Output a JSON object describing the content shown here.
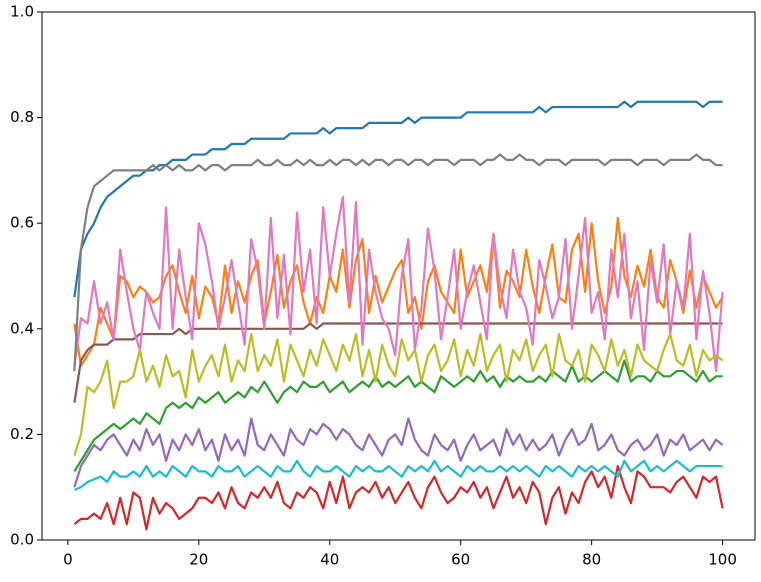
{
  "chart_data": {
    "type": "line",
    "x": [
      1,
      2,
      3,
      4,
      5,
      6,
      7,
      8,
      9,
      10,
      11,
      12,
      13,
      14,
      15,
      16,
      17,
      18,
      19,
      20,
      21,
      22,
      23,
      24,
      25,
      26,
      27,
      28,
      29,
      30,
      31,
      32,
      33,
      34,
      35,
      36,
      37,
      38,
      39,
      40,
      41,
      42,
      43,
      44,
      45,
      46,
      47,
      48,
      49,
      50,
      51,
      52,
      53,
      54,
      55,
      56,
      57,
      58,
      59,
      60,
      61,
      62,
      63,
      64,
      65,
      66,
      67,
      68,
      69,
      70,
      71,
      72,
      73,
      74,
      75,
      76,
      77,
      78,
      79,
      80,
      81,
      82,
      83,
      84,
      85,
      86,
      87,
      88,
      89,
      90,
      91,
      92,
      93,
      94,
      95,
      96,
      97,
      98,
      99,
      100
    ],
    "series": [
      {
        "color": "#1f77b4",
        "values": [
          0.46,
          0.55,
          0.58,
          0.6,
          0.63,
          0.65,
          0.66,
          0.67,
          0.68,
          0.69,
          0.69,
          0.7,
          0.7,
          0.71,
          0.71,
          0.72,
          0.72,
          0.72,
          0.73,
          0.73,
          0.73,
          0.74,
          0.74,
          0.74,
          0.75,
          0.75,
          0.75,
          0.76,
          0.76,
          0.76,
          0.76,
          0.76,
          0.76,
          0.77,
          0.77,
          0.77,
          0.77,
          0.77,
          0.78,
          0.77,
          0.78,
          0.78,
          0.78,
          0.78,
          0.78,
          0.79,
          0.79,
          0.79,
          0.79,
          0.79,
          0.79,
          0.8,
          0.79,
          0.8,
          0.8,
          0.8,
          0.8,
          0.8,
          0.8,
          0.8,
          0.81,
          0.81,
          0.81,
          0.81,
          0.81,
          0.81,
          0.81,
          0.81,
          0.81,
          0.81,
          0.81,
          0.82,
          0.81,
          0.82,
          0.82,
          0.82,
          0.82,
          0.82,
          0.82,
          0.82,
          0.82,
          0.82,
          0.82,
          0.82,
          0.83,
          0.82,
          0.83,
          0.83,
          0.83,
          0.83,
          0.83,
          0.83,
          0.83,
          0.83,
          0.83,
          0.83,
          0.82,
          0.83,
          0.83,
          0.83
        ]
      },
      {
        "color": "#ff7f0e",
        "values": [
          0.41,
          0.33,
          0.35,
          0.37,
          0.44,
          0.41,
          0.38,
          0.5,
          0.49,
          0.46,
          0.48,
          0.47,
          0.45,
          0.46,
          0.5,
          0.52,
          0.47,
          0.43,
          0.5,
          0.42,
          0.48,
          0.46,
          0.41,
          0.52,
          0.43,
          0.49,
          0.45,
          0.5,
          0.53,
          0.41,
          0.47,
          0.54,
          0.44,
          0.49,
          0.52,
          0.45,
          0.41,
          0.46,
          0.43,
          0.5,
          0.47,
          0.55,
          0.44,
          0.53,
          0.57,
          0.43,
          0.5,
          0.45,
          0.48,
          0.51,
          0.53,
          0.43,
          0.46,
          0.4,
          0.49,
          0.52,
          0.47,
          0.45,
          0.43,
          0.55,
          0.46,
          0.49,
          0.52,
          0.47,
          0.58,
          0.44,
          0.51,
          0.49,
          0.46,
          0.55,
          0.48,
          0.43,
          0.5,
          0.56,
          0.46,
          0.45,
          0.55,
          0.58,
          0.47,
          0.6,
          0.49,
          0.43,
          0.48,
          0.61,
          0.5,
          0.46,
          0.52,
          0.48,
          0.55,
          0.46,
          0.44,
          0.53,
          0.49,
          0.43,
          0.51,
          0.44,
          0.5,
          0.47,
          0.44,
          0.46
        ]
      },
      {
        "color": "#2ca02c",
        "values": [
          0.13,
          0.15,
          0.17,
          0.19,
          0.2,
          0.21,
          0.22,
          0.21,
          0.22,
          0.23,
          0.22,
          0.24,
          0.23,
          0.22,
          0.25,
          0.26,
          0.25,
          0.26,
          0.25,
          0.27,
          0.26,
          0.27,
          0.28,
          0.26,
          0.27,
          0.28,
          0.27,
          0.29,
          0.28,
          0.3,
          0.28,
          0.26,
          0.28,
          0.29,
          0.28,
          0.3,
          0.29,
          0.29,
          0.3,
          0.28,
          0.29,
          0.3,
          0.28,
          0.29,
          0.3,
          0.29,
          0.31,
          0.29,
          0.3,
          0.29,
          0.3,
          0.31,
          0.29,
          0.3,
          0.29,
          0.28,
          0.31,
          0.3,
          0.29,
          0.3,
          0.31,
          0.3,
          0.32,
          0.3,
          0.31,
          0.29,
          0.31,
          0.3,
          0.31,
          0.3,
          0.3,
          0.31,
          0.3,
          0.32,
          0.31,
          0.3,
          0.33,
          0.3,
          0.31,
          0.3,
          0.31,
          0.32,
          0.31,
          0.3,
          0.34,
          0.3,
          0.31,
          0.31,
          0.3,
          0.32,
          0.31,
          0.31,
          0.32,
          0.32,
          0.31,
          0.3,
          0.32,
          0.3,
          0.31,
          0.31
        ]
      },
      {
        "color": "#d62728",
        "values": [
          0.03,
          0.04,
          0.04,
          0.05,
          0.04,
          0.07,
          0.03,
          0.08,
          0.03,
          0.09,
          0.08,
          0.02,
          0.08,
          0.05,
          0.07,
          0.06,
          0.04,
          0.05,
          0.06,
          0.08,
          0.08,
          0.07,
          0.09,
          0.06,
          0.1,
          0.07,
          0.06,
          0.09,
          0.08,
          0.1,
          0.08,
          0.11,
          0.07,
          0.06,
          0.09,
          0.08,
          0.1,
          0.09,
          0.06,
          0.11,
          0.07,
          0.12,
          0.06,
          0.09,
          0.1,
          0.09,
          0.11,
          0.08,
          0.1,
          0.07,
          0.09,
          0.11,
          0.08,
          0.06,
          0.1,
          0.12,
          0.09,
          0.07,
          0.08,
          0.1,
          0.09,
          0.11,
          0.08,
          0.1,
          0.06,
          0.09,
          0.12,
          0.08,
          0.1,
          0.07,
          0.11,
          0.09,
          0.03,
          0.08,
          0.1,
          0.05,
          0.09,
          0.07,
          0.11,
          0.13,
          0.1,
          0.12,
          0.08,
          0.14,
          0.1,
          0.07,
          0.13,
          0.12,
          0.1,
          0.1,
          0.1,
          0.09,
          0.11,
          0.12,
          0.1,
          0.08,
          0.12,
          0.11,
          0.12,
          0.06
        ]
      },
      {
        "color": "#9467bd",
        "values": [
          0.1,
          0.14,
          0.16,
          0.18,
          0.17,
          0.19,
          0.2,
          0.18,
          0.16,
          0.19,
          0.17,
          0.21,
          0.18,
          0.2,
          0.15,
          0.19,
          0.17,
          0.2,
          0.18,
          0.21,
          0.17,
          0.19,
          0.15,
          0.2,
          0.17,
          0.19,
          0.16,
          0.23,
          0.18,
          0.17,
          0.2,
          0.18,
          0.16,
          0.21,
          0.19,
          0.18,
          0.21,
          0.2,
          0.22,
          0.21,
          0.19,
          0.21,
          0.2,
          0.18,
          0.17,
          0.2,
          0.18,
          0.16,
          0.19,
          0.2,
          0.18,
          0.23,
          0.19,
          0.17,
          0.16,
          0.2,
          0.18,
          0.17,
          0.19,
          0.15,
          0.18,
          0.2,
          0.17,
          0.18,
          0.19,
          0.16,
          0.21,
          0.18,
          0.2,
          0.17,
          0.19,
          0.17,
          0.18,
          0.2,
          0.16,
          0.19,
          0.21,
          0.18,
          0.19,
          0.22,
          0.17,
          0.18,
          0.2,
          0.17,
          0.16,
          0.18,
          0.19,
          0.17,
          0.18,
          0.2,
          0.16,
          0.19,
          0.18,
          0.2,
          0.17,
          0.18,
          0.19,
          0.17,
          0.19,
          0.18
        ]
      },
      {
        "color": "#8c564b",
        "values": [
          0.26,
          0.34,
          0.36,
          0.37,
          0.37,
          0.37,
          0.38,
          0.38,
          0.38,
          0.38,
          0.39,
          0.39,
          0.39,
          0.39,
          0.39,
          0.39,
          0.4,
          0.39,
          0.4,
          0.4,
          0.4,
          0.4,
          0.4,
          0.4,
          0.4,
          0.4,
          0.4,
          0.4,
          0.4,
          0.4,
          0.4,
          0.4,
          0.4,
          0.4,
          0.4,
          0.4,
          0.41,
          0.4,
          0.41,
          0.41,
          0.41,
          0.41,
          0.41,
          0.41,
          0.41,
          0.41,
          0.41,
          0.41,
          0.41,
          0.41,
          0.41,
          0.41,
          0.41,
          0.41,
          0.41,
          0.41,
          0.41,
          0.41,
          0.41,
          0.41,
          0.41,
          0.41,
          0.41,
          0.41,
          0.41,
          0.41,
          0.41,
          0.41,
          0.41,
          0.41,
          0.41,
          0.41,
          0.41,
          0.41,
          0.41,
          0.41,
          0.41,
          0.41,
          0.41,
          0.41,
          0.41,
          0.41,
          0.41,
          0.41,
          0.41,
          0.41,
          0.41,
          0.41,
          0.41,
          0.41,
          0.41,
          0.41,
          0.41,
          0.41,
          0.41,
          0.41,
          0.41,
          0.41,
          0.41,
          0.41
        ]
      },
      {
        "color": "#e377c2",
        "values": [
          0.33,
          0.42,
          0.41,
          0.49,
          0.41,
          0.45,
          0.38,
          0.55,
          0.47,
          0.4,
          0.36,
          0.47,
          0.43,
          0.4,
          0.63,
          0.4,
          0.55,
          0.46,
          0.38,
          0.6,
          0.56,
          0.49,
          0.4,
          0.46,
          0.53,
          0.45,
          0.37,
          0.57,
          0.51,
          0.4,
          0.61,
          0.42,
          0.54,
          0.39,
          0.62,
          0.47,
          0.55,
          0.41,
          0.63,
          0.5,
          0.58,
          0.65,
          0.45,
          0.64,
          0.37,
          0.55,
          0.47,
          0.42,
          0.4,
          0.35,
          0.5,
          0.57,
          0.36,
          0.44,
          0.59,
          0.51,
          0.38,
          0.46,
          0.55,
          0.4,
          0.47,
          0.52,
          0.45,
          0.38,
          0.58,
          0.48,
          0.42,
          0.55,
          0.47,
          0.44,
          0.37,
          0.53,
          0.48,
          0.42,
          0.46,
          0.57,
          0.4,
          0.5,
          0.61,
          0.43,
          0.47,
          0.38,
          0.55,
          0.46,
          0.58,
          0.42,
          0.49,
          0.36,
          0.53,
          0.45,
          0.56,
          0.39,
          0.49,
          0.44,
          0.58,
          0.38,
          0.51,
          0.43,
          0.32,
          0.47
        ]
      },
      {
        "color": "#7f7f7f",
        "values": [
          0.32,
          0.55,
          0.63,
          0.67,
          0.68,
          0.69,
          0.7,
          0.7,
          0.7,
          0.7,
          0.7,
          0.7,
          0.71,
          0.7,
          0.71,
          0.7,
          0.71,
          0.7,
          0.7,
          0.71,
          0.7,
          0.71,
          0.71,
          0.7,
          0.71,
          0.71,
          0.71,
          0.71,
          0.72,
          0.71,
          0.71,
          0.72,
          0.71,
          0.71,
          0.72,
          0.71,
          0.72,
          0.71,
          0.71,
          0.72,
          0.71,
          0.72,
          0.72,
          0.71,
          0.72,
          0.71,
          0.72,
          0.72,
          0.71,
          0.72,
          0.72,
          0.71,
          0.72,
          0.72,
          0.71,
          0.72,
          0.72,
          0.72,
          0.71,
          0.72,
          0.72,
          0.72,
          0.71,
          0.72,
          0.72,
          0.73,
          0.72,
          0.72,
          0.73,
          0.72,
          0.72,
          0.71,
          0.72,
          0.72,
          0.72,
          0.71,
          0.72,
          0.72,
          0.72,
          0.72,
          0.72,
          0.71,
          0.72,
          0.72,
          0.72,
          0.72,
          0.71,
          0.72,
          0.72,
          0.72,
          0.71,
          0.72,
          0.72,
          0.72,
          0.72,
          0.73,
          0.72,
          0.72,
          0.71,
          0.71
        ]
      },
      {
        "color": "#bcbd22",
        "values": [
          0.16,
          0.2,
          0.29,
          0.28,
          0.3,
          0.34,
          0.25,
          0.3,
          0.3,
          0.31,
          0.36,
          0.3,
          0.33,
          0.29,
          0.35,
          0.31,
          0.32,
          0.27,
          0.36,
          0.3,
          0.33,
          0.35,
          0.31,
          0.37,
          0.3,
          0.34,
          0.32,
          0.39,
          0.32,
          0.35,
          0.33,
          0.38,
          0.3,
          0.37,
          0.34,
          0.31,
          0.36,
          0.33,
          0.38,
          0.35,
          0.32,
          0.37,
          0.34,
          0.39,
          0.31,
          0.36,
          0.3,
          0.37,
          0.33,
          0.31,
          0.38,
          0.34,
          0.36,
          0.3,
          0.35,
          0.37,
          0.32,
          0.34,
          0.38,
          0.31,
          0.36,
          0.33,
          0.39,
          0.32,
          0.35,
          0.37,
          0.3,
          0.36,
          0.34,
          0.38,
          0.32,
          0.35,
          0.37,
          0.31,
          0.39,
          0.34,
          0.33,
          0.36,
          0.3,
          0.37,
          0.35,
          0.32,
          0.38,
          0.33,
          0.36,
          0.31,
          0.37,
          0.34,
          0.33,
          0.32,
          0.36,
          0.39,
          0.34,
          0.33,
          0.37,
          0.31,
          0.36,
          0.34,
          0.35,
          0.34
        ]
      },
      {
        "color": "#17becf",
        "values": [
          0.095,
          0.1,
          0.11,
          0.115,
          0.12,
          0.11,
          0.13,
          0.12,
          0.12,
          0.13,
          0.12,
          0.14,
          0.12,
          0.13,
          0.12,
          0.14,
          0.13,
          0.12,
          0.14,
          0.13,
          0.13,
          0.12,
          0.14,
          0.13,
          0.13,
          0.14,
          0.12,
          0.13,
          0.14,
          0.13,
          0.12,
          0.14,
          0.13,
          0.13,
          0.15,
          0.13,
          0.12,
          0.14,
          0.13,
          0.13,
          0.14,
          0.13,
          0.12,
          0.14,
          0.13,
          0.14,
          0.13,
          0.13,
          0.14,
          0.13,
          0.12,
          0.14,
          0.13,
          0.14,
          0.13,
          0.15,
          0.13,
          0.14,
          0.13,
          0.12,
          0.14,
          0.13,
          0.14,
          0.13,
          0.13,
          0.14,
          0.13,
          0.14,
          0.13,
          0.14,
          0.13,
          0.12,
          0.14,
          0.13,
          0.14,
          0.13,
          0.12,
          0.14,
          0.13,
          0.14,
          0.13,
          0.14,
          0.13,
          0.12,
          0.15,
          0.13,
          0.14,
          0.15,
          0.13,
          0.14,
          0.13,
          0.14,
          0.15,
          0.14,
          0.13,
          0.14,
          0.14,
          0.14,
          0.14,
          0.14
        ]
      }
    ],
    "xlim": [
      -3.95,
      104.95
    ],
    "xticks": [
      0,
      20,
      40,
      60,
      80,
      100
    ],
    "ylim": [
      0,
      1
    ],
    "yticks": [
      {
        "value": 0,
        "label": "0.0"
      },
      0.2,
      0.4,
      0.6,
      0.8,
      {
        "value": 1,
        "label": "1.0"
      }
    ],
    "grid": false
  }
}
